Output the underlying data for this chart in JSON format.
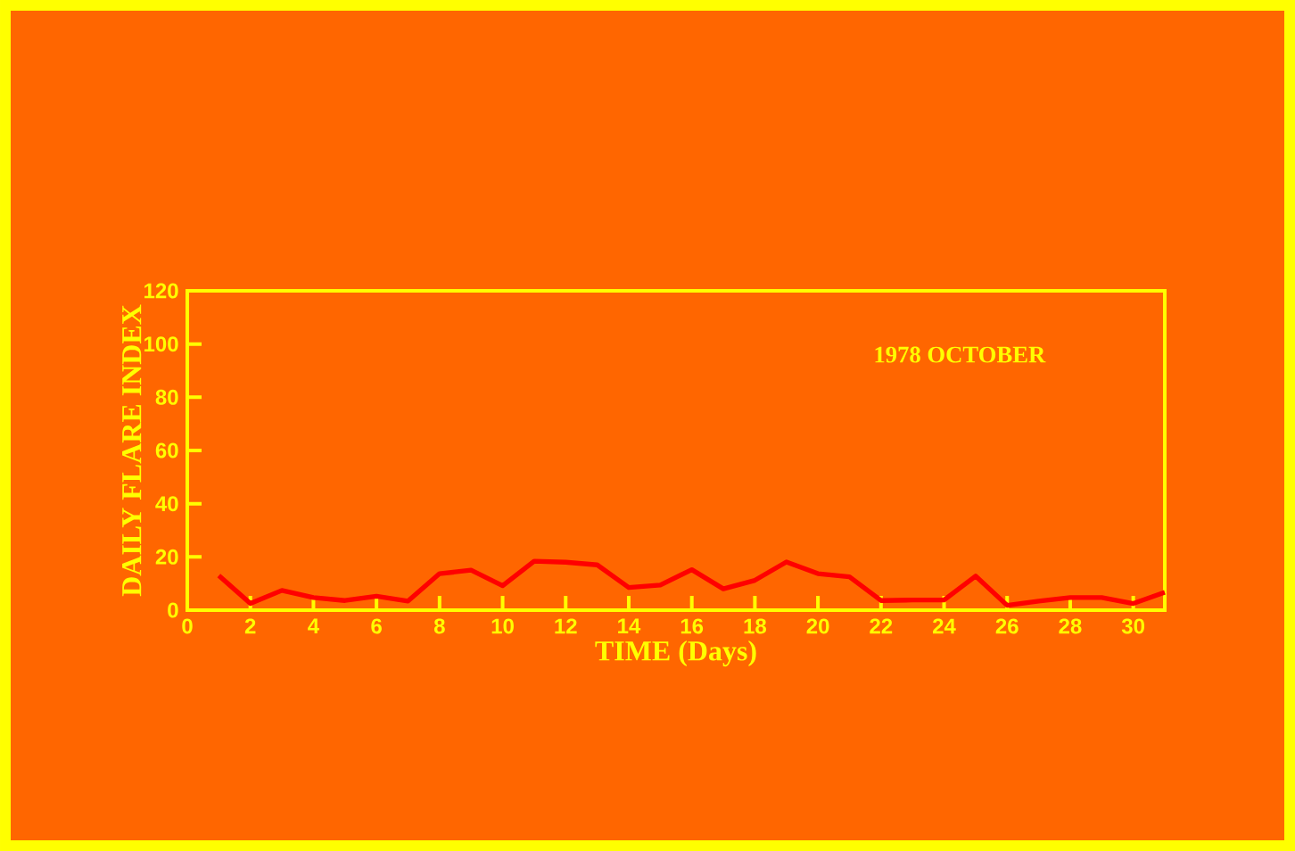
{
  "chart_data": {
    "type": "line",
    "xlabel": "TIME (Days)",
    "ylabel": "DAILY FLARE INDEX",
    "annotations": [
      "1978 OCTOBER"
    ],
    "x": [
      1,
      2,
      3,
      4,
      5,
      6,
      7,
      8,
      9,
      10,
      11,
      12,
      13,
      14,
      15,
      16,
      17,
      18,
      19,
      20,
      21,
      22,
      23,
      24,
      25,
      26,
      27,
      28,
      29,
      30,
      31
    ],
    "series": [
      {
        "color": "#ff0000",
        "values": [
          13,
          2.5,
          7.4,
          4.7,
          3.6,
          5.2,
          3.4,
          13.7,
          15,
          9.2,
          18.4,
          18,
          17,
          8.5,
          9.4,
          15.2,
          8,
          11.2,
          18.1,
          13.7,
          12.5,
          3.6,
          3.8,
          3.8,
          12.8,
          1.8,
          3.4,
          4.7,
          4.7,
          2.5,
          6.7
        ]
      }
    ],
    "xlim": [
      0,
      31
    ],
    "ylim": [
      0,
      120
    ],
    "xticks": [
      0,
      2,
      4,
      6,
      8,
      10,
      12,
      14,
      16,
      18,
      20,
      22,
      24,
      26,
      28,
      30
    ],
    "yticks": [
      0,
      20,
      40,
      60,
      80,
      100,
      120
    ],
    "grid": false,
    "marker": "none",
    "line_style": "solid"
  }
}
